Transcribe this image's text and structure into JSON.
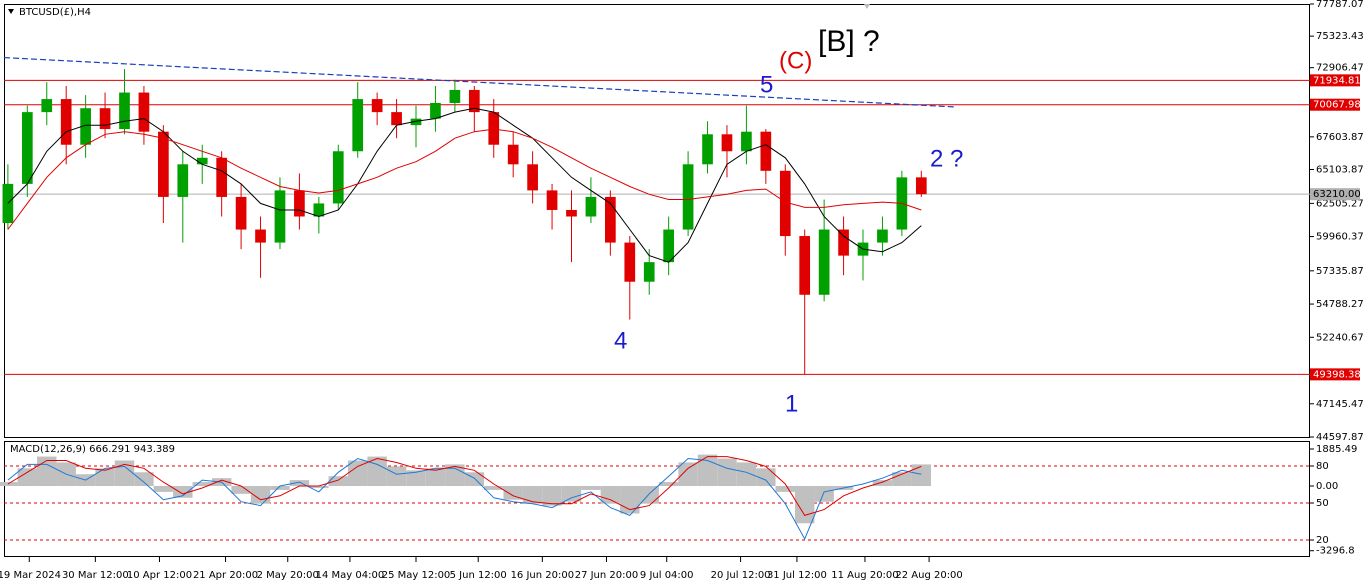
{
  "chart_data": [
    {
      "type": "candlestick",
      "title": "BTCUSD(£),H4",
      "open": [
        61000,
        64000,
        69500,
        70500,
        67000,
        69800,
        68200,
        71000,
        68000,
        63000,
        65500,
        66000,
        63000,
        60500,
        59500,
        63500,
        61500,
        62500,
        66500,
        70500,
        69500,
        68500,
        69000,
        70200,
        71200,
        69500,
        67000,
        65500,
        63500,
        62000,
        61500,
        63000,
        59500,
        56500,
        58000,
        60500,
        65500,
        67800,
        66500,
        68000,
        65000,
        60000,
        55500,
        60500,
        58500,
        59500,
        60500,
        64500
      ],
      "high": [
        65500,
        70000,
        71800,
        71500,
        70800,
        71000,
        72800,
        71500,
        68500,
        66500,
        67000,
        66500,
        64000,
        61500,
        64500,
        64800,
        63000,
        67000,
        71800,
        71000,
        70500,
        70000,
        71500,
        72000,
        71500,
        70500,
        68000,
        66500,
        64000,
        63500,
        64500,
        63500,
        60000,
        59000,
        61500,
        66500,
        68800,
        68500,
        70000,
        68200,
        65500,
        60500,
        62800,
        61500,
        60500,
        61500,
        65000,
        65000
      ],
      "low": [
        60500,
        63000,
        68500,
        65500,
        66000,
        67500,
        67800,
        67000,
        61000,
        59500,
        64000,
        61500,
        59000,
        56800,
        59000,
        60500,
        60200,
        62000,
        66000,
        68500,
        67500,
        66800,
        68000,
        69500,
        68000,
        66000,
        64500,
        62500,
        60500,
        58000,
        61000,
        58500,
        53600,
        55500,
        57000,
        60000,
        64800,
        64500,
        65500,
        64000,
        58500,
        49400,
        55000,
        57000,
        56600,
        58500,
        60000,
        63000
      ],
      "close": [
        64000,
        69500,
        70500,
        67000,
        69800,
        68200,
        71000,
        68000,
        63000,
        65500,
        66000,
        63000,
        60500,
        59500,
        63500,
        61500,
        62500,
        66500,
        70500,
        69500,
        68500,
        69000,
        70200,
        71200,
        69500,
        67000,
        65500,
        63500,
        62000,
        61500,
        63000,
        59500,
        56500,
        58000,
        60500,
        65500,
        67800,
        66500,
        68000,
        65000,
        60000,
        55500,
        60500,
        58500,
        59500,
        60500,
        64500,
        63210
      ],
      "up_color": "#00a000",
      "down_color": "#e00000",
      "series": [
        {
          "color": "#000000",
          "values": [
            62500,
            64000,
            66500,
            68000,
            68500,
            68500,
            68800,
            69000,
            68000,
            66500,
            65500,
            65000,
            64000,
            62500,
            62000,
            62000,
            61500,
            62000,
            64000,
            66500,
            68500,
            68800,
            69000,
            69500,
            69800,
            69500,
            68500,
            67500,
            66000,
            64500,
            63500,
            62500,
            60500,
            58500,
            58000,
            59500,
            62500,
            65500,
            66500,
            67000,
            66000,
            64000,
            61500,
            60000,
            59000,
            58800,
            59500,
            60800
          ]
        },
        {
          "color": "#e00000",
          "values": [
            60500,
            62500,
            64500,
            66000,
            67000,
            67800,
            68000,
            67800,
            67500,
            67000,
            66500,
            66000,
            65200,
            64500,
            63800,
            63500,
            63300,
            63500,
            64000,
            64500,
            65200,
            65700,
            66500,
            67500,
            68000,
            68200,
            68000,
            67500,
            66800,
            66000,
            65200,
            64500,
            63800,
            63200,
            62800,
            62800,
            63000,
            63200,
            63500,
            63600,
            62600,
            62200,
            62200,
            62400,
            62500,
            62600,
            62500,
            62000
          ]
        }
      ],
      "trendline": {
        "start": 73680,
        "end": 69890,
        "x": [
          -0.2,
          48.8
        ],
        "color": "#1a3fc0"
      },
      "levels": [
        {
          "value": 71934.81,
          "color": "#e00000"
        },
        {
          "value": 70067.98,
          "color": "#e00000"
        },
        {
          "value": 63210,
          "label": "63210.00",
          "color": "#b0b0b0"
        },
        {
          "value": 49398.38,
          "color": "#e00000"
        }
      ],
      "annotations": [
        {
          "text": "[B] ?",
          "color": "#000000"
        },
        {
          "text": "(C)",
          "color": "#e00000"
        },
        {
          "text": "5",
          "color": "#1a1ad0"
        },
        {
          "text": "2 ?",
          "color": "#1a1ad0"
        },
        {
          "text": "4",
          "color": "#1a1ad0"
        },
        {
          "text": "1",
          "color": "#1a1ad0"
        }
      ],
      "xlim": [
        -0.2,
        67
      ],
      "xticks": [
        {
          "value": 1.1,
          "label": "19 Mar 2024"
        },
        {
          "value": 4.5,
          "label": "30 Mar 12:00"
        },
        {
          "value": 7.8,
          "label": "10 Apr 12:00"
        },
        {
          "value": 11.2,
          "label": "21 Apr 20:00"
        },
        {
          "value": 14.4,
          "label": "2 May 20:00"
        },
        {
          "value": 17.6,
          "label": "14 May 04:00"
        },
        {
          "value": 21,
          "label": "25 May 12:00"
        },
        {
          "value": 24.2,
          "label": "5 Jun 12:00"
        },
        {
          "value": 27.5,
          "label": "16 Jun 20:00"
        },
        {
          "value": 30.8,
          "label": "27 Jun 20:00"
        },
        {
          "value": 33.9,
          "label": "9 Jul 04:00"
        },
        {
          "value": 37.7,
          "label": "20 Jul 12:00"
        },
        {
          "value": 40.6,
          "label": "31 Jul 12:00"
        },
        {
          "value": 44.1,
          "label": "11 Aug 20:00"
        },
        {
          "value": 47.4,
          "label": "22 Aug 20:00"
        }
      ],
      "ylim": [
        44597.87,
        77787.07
      ],
      "yticks": [
        77787.07,
        75323.43,
        72906.47,
        67603.87,
        65103.87,
        62505.27,
        59960.37,
        57335.87,
        54788.27,
        52240.67,
        47145.47,
        44597.87
      ]
    },
    {
      "type": "macd",
      "title": "MACD(12,26,9) 666.291 943.389",
      "histogram": [
        200,
        900,
        1500,
        1200,
        600,
        900,
        1300,
        700,
        -300,
        -600,
        200,
        400,
        -400,
        -900,
        -200,
        300,
        -100,
        500,
        1300,
        1500,
        1000,
        800,
        900,
        1100,
        700,
        -200,
        -700,
        -900,
        -1000,
        -800,
        -200,
        -900,
        -1400,
        -900,
        200,
        1200,
        1600,
        1400,
        1200,
        900,
        -300,
        -1900,
        -800,
        -200,
        0,
        300,
        700,
        1100
      ],
      "histogram_color": "#c0c0c0",
      "series": [
        {
          "color": "#1e78d8",
          "values": [
            300,
            1100,
            1100,
            600,
            300,
            900,
            1000,
            200,
            -700,
            -500,
            300,
            200,
            -800,
            -1000,
            0,
            200,
            -300,
            700,
            1400,
            1100,
            600,
            700,
            900,
            900,
            400,
            -600,
            -800,
            -900,
            -1100,
            -600,
            -300,
            -1100,
            -1500,
            -400,
            500,
            1400,
            1300,
            900,
            700,
            300,
            -900,
            -2700,
            -300,
            -100,
            100,
            400,
            800,
            600
          ]
        },
        {
          "color": "#e00000",
          "values": [
            100,
            700,
            1300,
            1300,
            900,
            800,
            1100,
            900,
            200,
            -400,
            -100,
            300,
            0,
            -700,
            -500,
            0,
            0,
            300,
            1000,
            1400,
            1200,
            900,
            800,
            1000,
            800,
            100,
            -500,
            -800,
            -900,
            -900,
            -400,
            -700,
            -1200,
            -1000,
            -100,
            900,
            1500,
            1500,
            1300,
            1000,
            100,
            -1500,
            -1200,
            -500,
            -100,
            200,
            600,
            1000
          ]
        }
      ],
      "ylim": [
        -3566,
        2293
      ],
      "yticks": [
        1885.49,
        {
          "value": 1019,
          "label": "80"
        },
        {
          "value": 0,
          "label": "0.00"
        },
        {
          "value": -866,
          "label": "50"
        },
        {
          "value": -2751,
          "label": "20"
        },
        -3296.8
      ]
    }
  ]
}
